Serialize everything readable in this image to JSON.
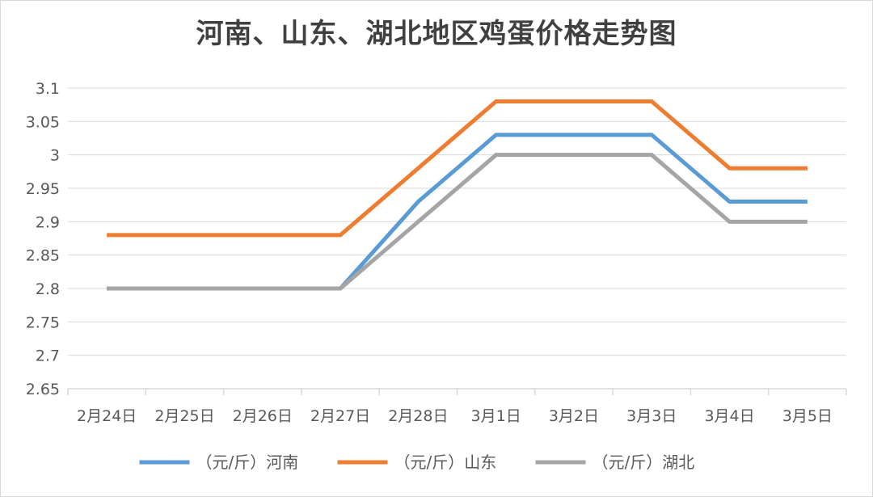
{
  "chart_data": {
    "type": "line",
    "title": "河南、山东、湖北地区鸡蛋价格走势图",
    "xlabel": "",
    "ylabel": "",
    "categories": [
      "2月24日",
      "2月25日",
      "2月26日",
      "2月27日",
      "2月28日",
      "3月1日",
      "3月2日",
      "3月3日",
      "3月4日",
      "3月5日"
    ],
    "yticks": [
      "2.65",
      "2.7",
      "2.75",
      "2.8",
      "2.85",
      "2.9",
      "2.95",
      "3",
      "3.05",
      "3.1"
    ],
    "ylim": [
      2.65,
      3.1
    ],
    "grid": true,
    "legend_position": "bottom",
    "series": [
      {
        "name": "（元/斤）河南",
        "color": "#5b9bd5",
        "values": [
          2.8,
          2.8,
          2.8,
          2.8,
          2.93,
          3.03,
          3.03,
          3.03,
          2.93,
          2.93
        ]
      },
      {
        "name": "（元/斤）山东",
        "color": "#ed7d31",
        "values": [
          2.88,
          2.88,
          2.88,
          2.88,
          2.98,
          3.08,
          3.08,
          3.08,
          2.98,
          2.98
        ]
      },
      {
        "name": "（元/斤）湖北",
        "color": "#a5a5a5",
        "values": [
          2.8,
          2.8,
          2.8,
          2.8,
          2.9,
          3.0,
          3.0,
          3.0,
          2.9,
          2.9
        ]
      }
    ]
  }
}
